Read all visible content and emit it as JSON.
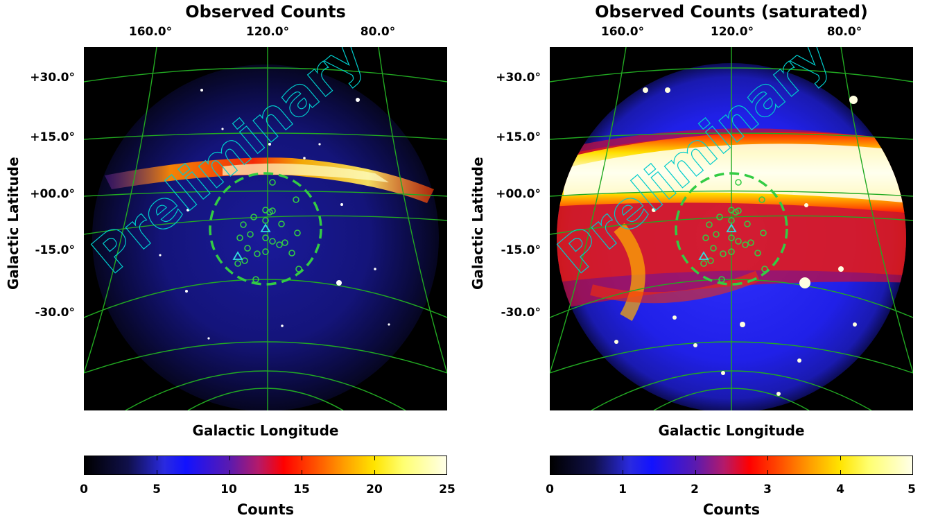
{
  "panels": [
    {
      "title": "Observed Counts",
      "top_ticks": [
        "160.0°",
        "120.0°",
        "80.0°"
      ],
      "lat_ticks": [
        "+30.0°",
        "+15.0°",
        "+00.0°",
        "-15.0°",
        "-30.0°"
      ],
      "ylabel": "Galactic Latitude",
      "xlabel": "Galactic Longitude",
      "watermark": "Preliminary",
      "colorbar": {
        "ticks": [
          "0",
          "5",
          "10",
          "15",
          "20",
          "25"
        ],
        "min": 0,
        "max": 25,
        "label": "Counts"
      }
    },
    {
      "title": "Observed Counts (saturated)",
      "top_ticks": [
        "160.0°",
        "120.0°",
        "80.0°"
      ],
      "lat_ticks": [
        "+30.0°",
        "+15.0°",
        "+00.0°",
        "-15.0°",
        "-30.0°"
      ],
      "ylabel": "Galactic Latitude",
      "xlabel": "Galactic Longitude",
      "watermark": "Preliminary",
      "colorbar": {
        "ticks": [
          "0",
          "1",
          "2",
          "3",
          "4",
          "5"
        ],
        "min": 0,
        "max": 5,
        "label": "Counts"
      }
    }
  ],
  "colors": {
    "grid": "#22aa22",
    "roi_circle": "#33cc44",
    "watermark": "#00cccc",
    "triangle_marker": "#33dddd"
  }
}
